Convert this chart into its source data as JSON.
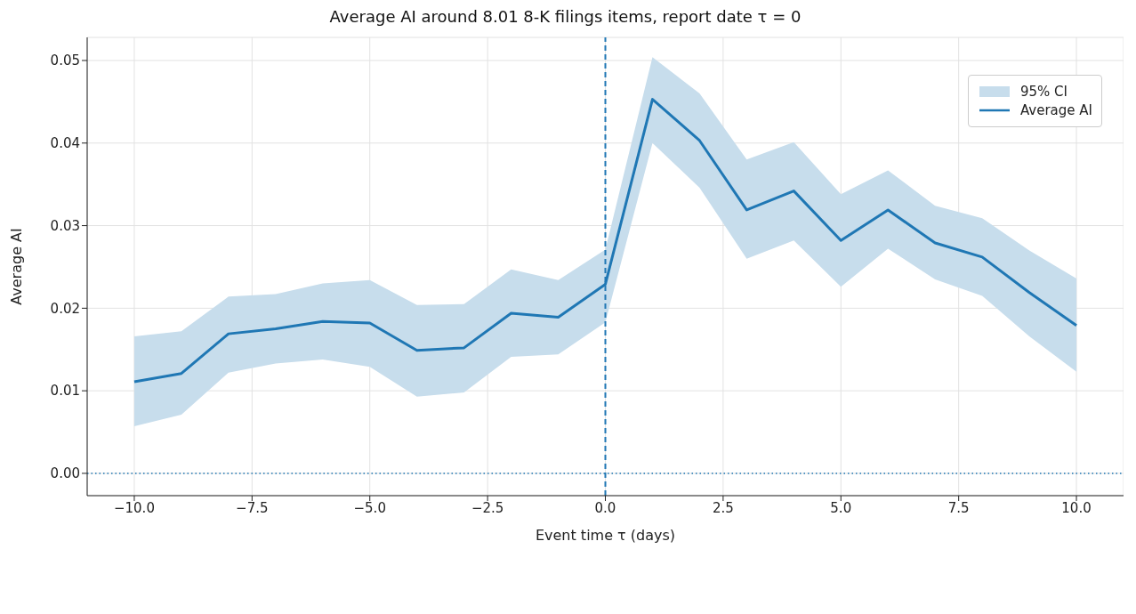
{
  "chart_data": {
    "type": "line",
    "title": "Average AI around 8.01 8-K filings items, report date τ = 0",
    "xlabel": "Event time τ (days)",
    "ylabel": "Average AI",
    "annotations": [
      "95% CI"
    ],
    "x": [
      -10,
      -9,
      -8,
      -7,
      -6,
      -5,
      -4,
      -3,
      -2,
      -1,
      0,
      1,
      2,
      3,
      4,
      5,
      6,
      7,
      8,
      9,
      10
    ],
    "series": [
      {
        "name": "Average AI",
        "color": "#1f77b4",
        "values": [
          0.0111,
          0.0121,
          0.0169,
          0.0175,
          0.0184,
          0.0182,
          0.0149,
          0.0152,
          0.0194,
          0.0189,
          0.0229,
          0.0453,
          0.0403,
          0.0319,
          0.0342,
          0.0282,
          0.0319,
          0.0279,
          0.0262,
          0.0219,
          0.0179
        ],
        "lower": [
          0.0057,
          0.0071,
          0.0122,
          0.0133,
          0.0138,
          0.0129,
          0.0093,
          0.0098,
          0.0141,
          0.0144,
          0.0183,
          0.04,
          0.0346,
          0.026,
          0.0282,
          0.0226,
          0.0272,
          0.0235,
          0.0215,
          0.0166,
          0.0123
        ],
        "upper": [
          0.0166,
          0.0172,
          0.0214,
          0.0217,
          0.023,
          0.0234,
          0.0204,
          0.0205,
          0.0247,
          0.0234,
          0.0271,
          0.0504,
          0.046,
          0.038,
          0.0401,
          0.0338,
          0.0367,
          0.0324,
          0.0309,
          0.027,
          0.0236
        ]
      }
    ],
    "xlim": [
      -11,
      11
    ],
    "xticks": [
      {
        "value": -10,
        "label": "−10.0"
      },
      {
        "value": -7.5,
        "label": "−7.5"
      },
      {
        "value": -5,
        "label": "−5.0"
      },
      {
        "value": -2.5,
        "label": "−2.5"
      },
      {
        "value": 0,
        "label": "0.0"
      },
      {
        "value": 2.5,
        "label": "2.5"
      },
      {
        "value": 5,
        "label": "5.0"
      },
      {
        "value": 7.5,
        "label": "7.5"
      },
      {
        "value": 10,
        "label": "10.0"
      }
    ],
    "ylim": [
      -0.0027,
      0.0528
    ],
    "yticks": [
      {
        "value": 0,
        "label": "0.00"
      },
      {
        "value": 0.01,
        "label": "0.01"
      },
      {
        "value": 0.02,
        "label": "0.02"
      },
      {
        "value": 0.03,
        "label": "0.03"
      },
      {
        "value": 0.04,
        "label": "0.04"
      },
      {
        "value": 0.05,
        "label": "0.05"
      }
    ],
    "ref_lines": [
      {
        "axis": "x",
        "value": 0,
        "color": "#1f77b4",
        "line_style": "dashed"
      },
      {
        "axis": "y",
        "value": 0,
        "color": "#1f77b4",
        "line_style": "dotted"
      }
    ],
    "grid": true,
    "legend": "top right",
    "marker": "none",
    "line_style": "solid"
  }
}
